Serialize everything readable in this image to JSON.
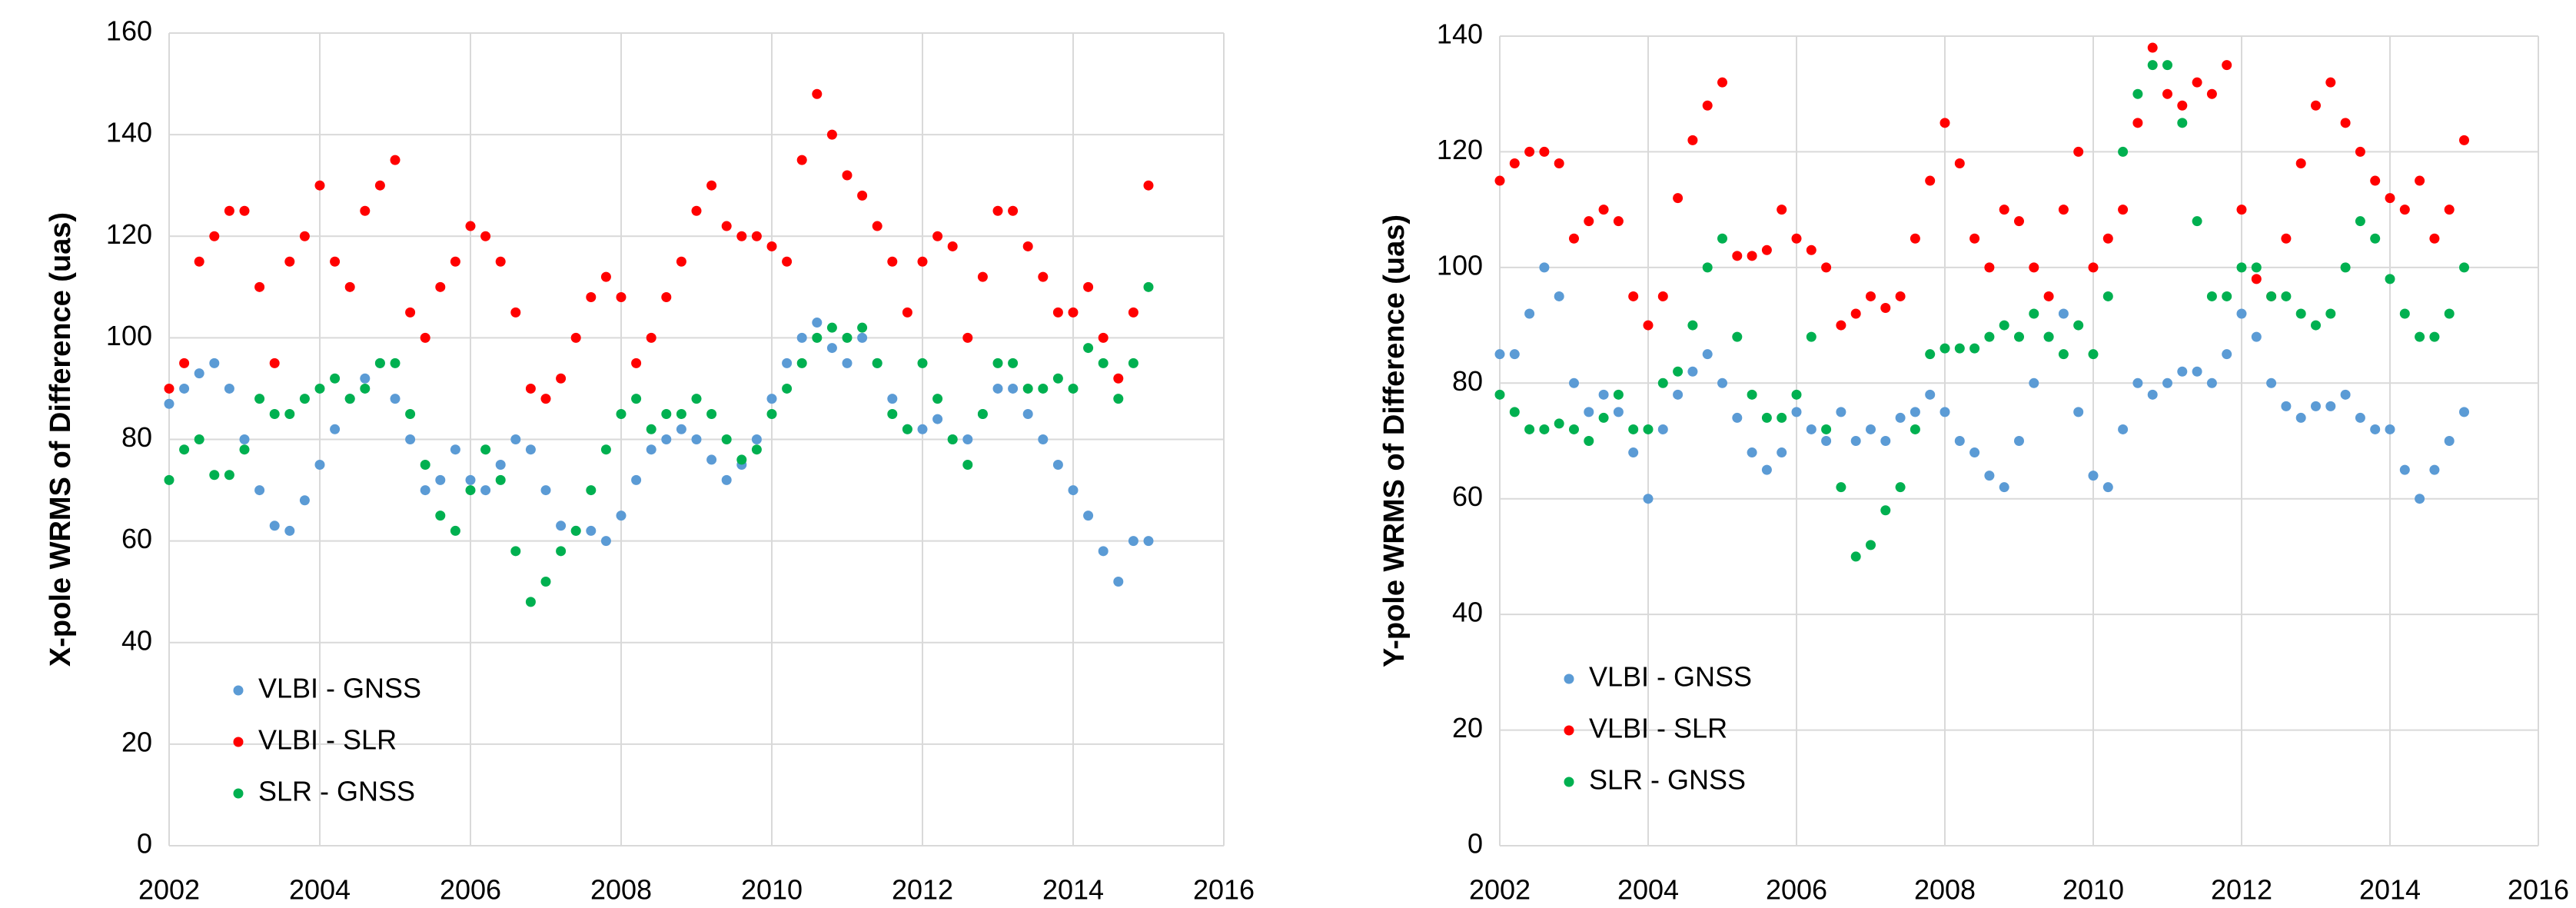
{
  "chart_data": [
    {
      "type": "scatter",
      "y_label": "X-pole WRMS of Difference (uas)",
      "x": [
        2002.0,
        2002.2,
        2002.4,
        2002.6,
        2002.8,
        2003.0,
        2003.2,
        2003.4,
        2003.6,
        2003.8,
        2004.0,
        2004.2,
        2004.4,
        2004.6,
        2004.8,
        2005.0,
        2005.2,
        2005.4,
        2005.6,
        2005.8,
        2006.0,
        2006.2,
        2006.4,
        2006.6,
        2006.8,
        2007.0,
        2007.2,
        2007.4,
        2007.6,
        2007.8,
        2008.0,
        2008.2,
        2008.4,
        2008.6,
        2008.8,
        2009.0,
        2009.2,
        2009.4,
        2009.6,
        2009.8,
        2010.0,
        2010.2,
        2010.4,
        2010.6,
        2010.8,
        2011.0,
        2011.2,
        2011.4,
        2011.6,
        2011.8,
        2012.0,
        2012.2,
        2012.4,
        2012.6,
        2012.8,
        2013.0,
        2013.2,
        2013.4,
        2013.6,
        2013.8,
        2014.0,
        2014.2,
        2014.4,
        2014.6,
        2014.8,
        2015.0
      ],
      "series": [
        {
          "name": "VLBI - GNSS",
          "color": "#5b9bd5",
          "values": [
            87,
            90,
            93,
            95,
            90,
            80,
            70,
            63,
            62,
            68,
            75,
            82,
            88,
            92,
            95,
            88,
            80,
            70,
            72,
            78,
            72,
            70,
            75,
            80,
            78,
            70,
            63,
            62,
            62,
            60,
            65,
            72,
            78,
            80,
            82,
            80,
            76,
            72,
            75,
            80,
            88,
            95,
            100,
            103,
            98,
            95,
            100,
            95,
            88,
            82,
            82,
            84,
            80,
            80,
            85,
            90,
            90,
            85,
            80,
            75,
            70,
            65,
            58,
            52,
            60,
            60
          ]
        },
        {
          "name": "VLBI - SLR",
          "color": "#ff0000",
          "values": [
            90,
            95,
            115,
            120,
            125,
            125,
            110,
            95,
            115,
            120,
            130,
            115,
            110,
            125,
            130,
            135,
            105,
            100,
            110,
            115,
            122,
            120,
            115,
            105,
            90,
            88,
            92,
            100,
            108,
            112,
            108,
            95,
            100,
            108,
            115,
            125,
            130,
            122,
            120,
            120,
            118,
            115,
            135,
            148,
            140,
            132,
            128,
            122,
            115,
            105,
            115,
            120,
            118,
            100,
            112,
            125,
            125,
            118,
            112,
            105,
            105,
            110,
            100,
            92,
            105,
            130
          ]
        },
        {
          "name": "SLR - GNSS",
          "color": "#00b050",
          "values": [
            72,
            78,
            80,
            73,
            73,
            78,
            88,
            85,
            85,
            88,
            90,
            92,
            88,
            90,
            95,
            95,
            85,
            75,
            65,
            62,
            70,
            78,
            72,
            58,
            48,
            52,
            58,
            62,
            70,
            78,
            85,
            88,
            82,
            85,
            85,
            88,
            85,
            80,
            76,
            78,
            85,
            90,
            95,
            100,
            102,
            100,
            102,
            95,
            85,
            82,
            95,
            88,
            80,
            75,
            85,
            95,
            95,
            90,
            90,
            92,
            90,
            98,
            95,
            88,
            95,
            110
          ]
        }
      ],
      "xlim": [
        2002,
        2016
      ],
      "xticks": [
        2002,
        2004,
        2006,
        2008,
        2010,
        2012,
        2014,
        2016
      ],
      "ylim": [
        0,
        160
      ],
      "yticks": [
        0,
        20,
        40,
        60,
        80,
        100,
        120,
        140,
        160
      ],
      "grid": true
    },
    {
      "type": "scatter",
      "y_label": "Y-pole WRMS of Difference (uas)",
      "x": [
        2002.0,
        2002.2,
        2002.4,
        2002.6,
        2002.8,
        2003.0,
        2003.2,
        2003.4,
        2003.6,
        2003.8,
        2004.0,
        2004.2,
        2004.4,
        2004.6,
        2004.8,
        2005.0,
        2005.2,
        2005.4,
        2005.6,
        2005.8,
        2006.0,
        2006.2,
        2006.4,
        2006.6,
        2006.8,
        2007.0,
        2007.2,
        2007.4,
        2007.6,
        2007.8,
        2008.0,
        2008.2,
        2008.4,
        2008.6,
        2008.8,
        2009.0,
        2009.2,
        2009.4,
        2009.6,
        2009.8,
        2010.0,
        2010.2,
        2010.4,
        2010.6,
        2010.8,
        2011.0,
        2011.2,
        2011.4,
        2011.6,
        2011.8,
        2012.0,
        2012.2,
        2012.4,
        2012.6,
        2012.8,
        2013.0,
        2013.2,
        2013.4,
        2013.6,
        2013.8,
        2014.0,
        2014.2,
        2014.4,
        2014.6,
        2014.8,
        2015.0
      ],
      "series": [
        {
          "name": "VLBI - GNSS",
          "color": "#5b9bd5",
          "values": [
            85,
            85,
            92,
            100,
            95,
            80,
            75,
            78,
            75,
            68,
            60,
            72,
            78,
            82,
            85,
            80,
            74,
            68,
            65,
            68,
            75,
            72,
            70,
            75,
            70,
            72,
            70,
            74,
            75,
            78,
            75,
            70,
            68,
            64,
            62,
            70,
            80,
            88,
            92,
            75,
            64,
            62,
            72,
            80,
            78,
            80,
            82,
            82,
            80,
            85,
            92,
            88,
            80,
            76,
            74,
            76,
            76,
            78,
            74,
            72,
            72,
            65,
            60,
            65,
            70,
            75
          ]
        },
        {
          "name": "VLBI - SLR",
          "color": "#ff0000",
          "values": [
            115,
            118,
            120,
            120,
            118,
            105,
            108,
            110,
            108,
            95,
            90,
            95,
            112,
            122,
            128,
            132,
            102,
            102,
            103,
            110,
            105,
            103,
            100,
            90,
            92,
            95,
            93,
            95,
            105,
            115,
            125,
            118,
            105,
            100,
            110,
            108,
            100,
            95,
            110,
            120,
            100,
            105,
            110,
            125,
            138,
            130,
            128,
            132,
            130,
            135,
            110,
            98,
            95,
            105,
            118,
            128,
            132,
            125,
            120,
            115,
            112,
            110,
            115,
            105,
            110,
            122
          ]
        },
        {
          "name": "SLR - GNSS",
          "color": "#00b050",
          "values": [
            78,
            75,
            72,
            72,
            73,
            72,
            70,
            74,
            78,
            72,
            72,
            80,
            82,
            90,
            100,
            105,
            88,
            78,
            74,
            74,
            78,
            88,
            72,
            62,
            50,
            52,
            58,
            62,
            72,
            85,
            86,
            86,
            86,
            88,
            90,
            88,
            92,
            88,
            85,
            90,
            85,
            95,
            120,
            130,
            135,
            135,
            125,
            108,
            95,
            95,
            100,
            100,
            95,
            95,
            92,
            90,
            92,
            100,
            108,
            105,
            98,
            92,
            88,
            88,
            92,
            100
          ]
        }
      ],
      "xlim": [
        2002,
        2016
      ],
      "xticks": [
        2002,
        2004,
        2006,
        2008,
        2010,
        2012,
        2014,
        2016
      ],
      "ylim": [
        0,
        140
      ],
      "yticks": [
        0,
        20,
        40,
        60,
        80,
        100,
        120,
        140
      ],
      "grid": true
    }
  ]
}
